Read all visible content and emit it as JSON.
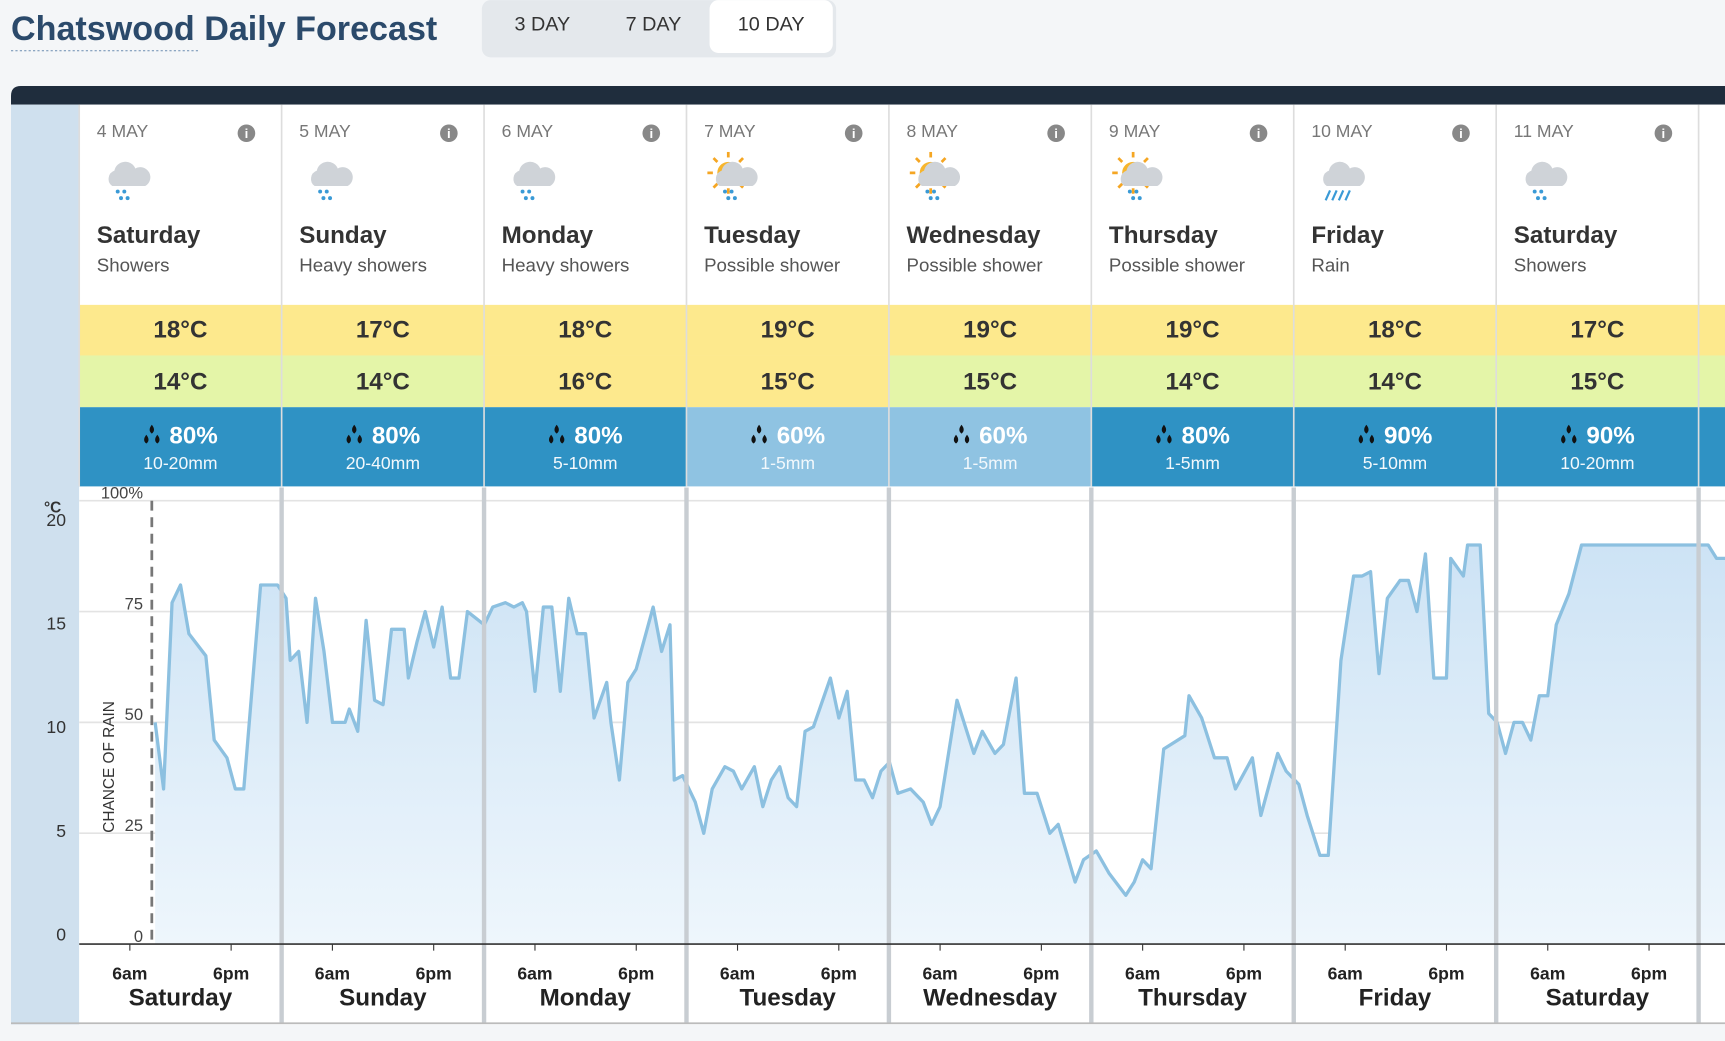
{
  "header": {
    "title": "Chatswood Daily Forecast",
    "tabs": [
      "3 DAY",
      "7 DAY",
      "10 DAY"
    ],
    "active_tab": "10 DAY"
  },
  "days": [
    {
      "date": "4 MAY",
      "name": "Saturday",
      "description": "Showers",
      "max": "18°C",
      "min": "14°C",
      "rain_chance": "80%",
      "rain_amount": "10-20mm",
      "max_color": "#fde98d",
      "min_color": "#e4f5a8",
      "rain_color": "#2f92c4"
    },
    {
      "date": "5 MAY",
      "name": "Sunday",
      "description": "Heavy showers",
      "max": "17°C",
      "min": "14°C",
      "rain_chance": "80%",
      "rain_amount": "20-40mm",
      "max_color": "#fde98d",
      "min_color": "#e4f5a8",
      "rain_color": "#2f92c4"
    },
    {
      "date": "6 MAY",
      "name": "Monday",
      "description": "Heavy showers",
      "max": "18°C",
      "min": "16°C",
      "rain_chance": "80%",
      "rain_amount": "5-10mm",
      "max_color": "#fde98d",
      "min_color": "#fde98d",
      "rain_color": "#2f92c4"
    },
    {
      "date": "7 MAY",
      "name": "Tuesday",
      "description": "Possible shower",
      "max": "19°C",
      "min": "15°C",
      "rain_chance": "60%",
      "rain_amount": "1-5mm",
      "max_color": "#fde98d",
      "min_color": "#fde98d",
      "rain_color": "#8fc3e2"
    },
    {
      "date": "8 MAY",
      "name": "Wednesday",
      "description": "Possible shower",
      "max": "19°C",
      "min": "15°C",
      "rain_chance": "60%",
      "rain_amount": "1-5mm",
      "max_color": "#fde98d",
      "min_color": "#e4f5a8",
      "rain_color": "#8fc3e2"
    },
    {
      "date": "9 MAY",
      "name": "Thursday",
      "description": "Possible shower",
      "max": "19°C",
      "min": "14°C",
      "rain_chance": "80%",
      "rain_amount": "1-5mm",
      "max_color": "#fde98d",
      "min_color": "#e4f5a8",
      "rain_color": "#2f92c4"
    },
    {
      "date": "10 MAY",
      "name": "Friday",
      "description": "Rain",
      "max": "18°C",
      "min": "14°C",
      "rain_chance": "90%",
      "rain_amount": "5-10mm",
      "max_color": "#fde98d",
      "min_color": "#e4f5a8",
      "rain_color": "#2f92c4"
    },
    {
      "date": "11 MAY",
      "name": "Saturday",
      "description": "Showers",
      "max": "17°C",
      "min": "15°C",
      "rain_chance": "90%",
      "rain_amount": "10-20mm",
      "max_color": "#fde98d",
      "min_color": "#e4f5a8",
      "rain_color": "#2f92c4"
    }
  ],
  "chart_data": {
    "type": "area",
    "y_label": "CHANCE OF RAIN",
    "y2_label": "°C",
    "color": "#8cc0e0",
    "x": [
      9,
      10,
      11,
      12,
      13,
      15,
      16,
      17.5,
      18.5,
      19.5,
      21.5,
      23.5,
      24.5,
      25,
      26,
      27,
      28,
      29,
      30,
      31.5,
      32,
      33,
      34,
      35,
      36,
      37,
      38.5,
      39,
      40,
      41,
      42,
      43,
      44,
      45,
      46,
      48,
      49,
      50.5,
      51.5,
      52.5,
      53,
      54,
      55,
      56,
      57,
      58,
      59,
      60,
      61,
      62.5,
      63,
      64,
      65,
      66,
      67,
      68,
      69,
      70,
      70.5,
      71.5,
      73,
      74,
      75,
      76.5,
      77.5,
      78.5,
      80,
      81,
      82,
      83,
      84,
      85,
      86,
      87,
      89,
      90,
      91,
      92,
      93,
      94,
      95,
      96,
      97,
      98.5,
      100,
      101,
      102,
      104,
      105,
      106,
      107,
      108.5,
      109.5,
      111,
      112,
      113.5,
      115,
      116,
      118,
      119,
      120.5,
      122,
      124,
      125,
      126,
      127,
      128.5,
      131,
      131.5,
      133,
      134.5,
      136,
      137,
      139,
      140,
      142,
      143,
      144.5,
      145.5,
      147,
      148,
      149.5,
      151,
      152,
      153,
      154,
      155,
      156.5,
      157.5,
      158.5,
      159.5,
      160.5,
      162,
      162.5,
      164,
      164.5,
      166,
      167,
      168,
      169,
      170,
      171,
      172,
      173,
      174,
      175,
      176.5,
      178,
      193,
      194,
      195
    ],
    "values": [
      50,
      35,
      77,
      81,
      70,
      65,
      46,
      42,
      35,
      35,
      81,
      81,
      78,
      64,
      66,
      50,
      78,
      66,
      50,
      50,
      53,
      48,
      73,
      55,
      54,
      71,
      71,
      60,
      68,
      75,
      67,
      76,
      60,
      60,
      75,
      72,
      76,
      77,
      76,
      77,
      75,
      57,
      76,
      76,
      57,
      78,
      70,
      70,
      51,
      59,
      50,
      37,
      59,
      62,
      69,
      76,
      66,
      72,
      37,
      38,
      32,
      25,
      35,
      40,
      39,
      35,
      40,
      31,
      37,
      40,
      33,
      31,
      48,
      49,
      60,
      51,
      57,
      37,
      37,
      33,
      39,
      41,
      34,
      35,
      32,
      27,
      31,
      55,
      49,
      43,
      48,
      43,
      45,
      60,
      34,
      34,
      25,
      27,
      14,
      19,
      21,
      16,
      11,
      14,
      19,
      17,
      44,
      47,
      56,
      51,
      42,
      42,
      35,
      42,
      29,
      43,
      39,
      36,
      29,
      20,
      20,
      64,
      83,
      83,
      84,
      61,
      78,
      82,
      82,
      75,
      88,
      60,
      60,
      87,
      83,
      90,
      90,
      52,
      50,
      43,
      50,
      50,
      46,
      56,
      56,
      72,
      79,
      90,
      90,
      87,
      87
    ],
    "xlim": [
      0,
      195
    ],
    "xticks": [
      {
        "value": 6,
        "label": "6am"
      },
      {
        "value": 18,
        "label": "6pm"
      },
      {
        "value": 30,
        "label": "6am"
      },
      {
        "value": 42,
        "label": "6pm"
      },
      {
        "value": 54,
        "label": "6am"
      },
      {
        "value": 66,
        "label": "6pm"
      },
      {
        "value": 78,
        "label": "6am"
      },
      {
        "value": 90,
        "label": "6pm"
      },
      {
        "value": 102,
        "label": "6am"
      },
      {
        "value": 114,
        "label": "6pm"
      },
      {
        "value": 126,
        "label": "6am"
      },
      {
        "value": 138,
        "label": "6pm"
      },
      {
        "value": 150,
        "label": "6am"
      },
      {
        "value": 162,
        "label": "6pm"
      },
      {
        "value": 174,
        "label": "6am"
      },
      {
        "value": 186,
        "label": "6pm"
      }
    ],
    "ylim": [
      0,
      100
    ],
    "yticks": [
      0,
      25,
      50,
      75,
      {
        "value": 100,
        "label": "100%"
      }
    ],
    "y2lim": [
      -0.4,
      21
    ],
    "y2ticks": [
      0,
      5,
      10,
      15,
      20
    ],
    "grid": true
  }
}
